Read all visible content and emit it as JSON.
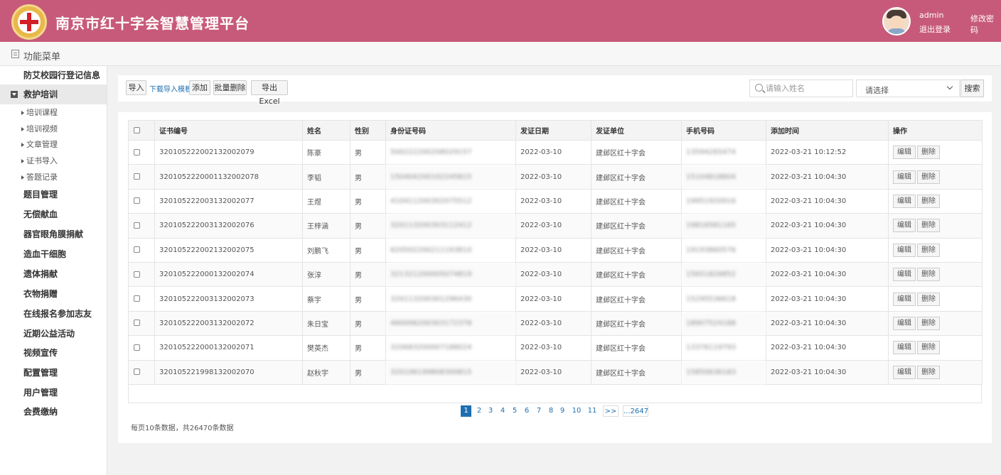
{
  "header": {
    "title": "南京市红十字会智慧管理平台",
    "user": "admin",
    "logout": "退出登录",
    "change_password": "修改密码"
  },
  "menubar": {
    "title": "功能菜单"
  },
  "sidebar": {
    "top_item": "防艾校园行登记信息",
    "active_group": "救护培训",
    "sub_items": [
      "培训课程",
      "培训视频",
      "文章管理",
      "证书导入",
      "答题记录"
    ],
    "items": [
      "题目管理",
      "无偿献血",
      "器官眼角膜捐献",
      "造血干细胞",
      "遗体捐献",
      "衣物捐赠",
      "在线报名参加志友",
      "近期公益活动",
      "视频宣传",
      "配置管理",
      "用户管理",
      "会费缴纳"
    ]
  },
  "toolbar": {
    "import": "导入",
    "download_template": "下载导入模板",
    "add": "添加",
    "batch_delete": "批量删除",
    "export": "导出Excel",
    "search_placeholder": "请输入姓名",
    "select_value": "请选择",
    "search_button": "搜索"
  },
  "table": {
    "headers": [
      "证书编号",
      "姓名",
      "性别",
      "身份证号码",
      "发证日期",
      "发证单位",
      "手机号码",
      "添加时间",
      "操作"
    ],
    "edit_label": "编辑",
    "delete_label": "删除",
    "rows": [
      {
        "cert": "3201052220021320020​79",
        "name": "陈豪",
        "gender": "男",
        "id": "500222200208029157",
        "date": "2022-03-10",
        "unit": "建邺区红十字会",
        "phone": "13594265474",
        "added": "2022-03-21 10:12:52"
      },
      {
        "cert": "320105222000113200207​8",
        "name": "李韬",
        "gender": "男",
        "id": "150404200102245815",
        "date": "2022-03-10",
        "unit": "建邺区红十字会",
        "phone": "15104818804",
        "added": "2022-03-21 10:04:30"
      },
      {
        "cert": "320105222003132002077",
        "name": "王煜",
        "gender": "男",
        "id": "410411200302075512",
        "date": "2022-03-10",
        "unit": "建邺区红十字会",
        "phone": "19951920916",
        "added": "2022-03-21 10:04:30"
      },
      {
        "cert": "320105222003132002076",
        "name": "王梓涵",
        "gender": "男",
        "id": "320113200303112412",
        "date": "2022-03-10",
        "unit": "建邺区红十字会",
        "phone": "19816581165",
        "added": "2022-03-21 10:04:30"
      },
      {
        "cert": "320105222002132002075",
        "name": "刘鹏飞",
        "gender": "男",
        "id": "620502200211193810",
        "date": "2022-03-10",
        "unit": "建邺区红十字会",
        "phone": "19193860576",
        "added": "2022-03-21 10:04:30"
      },
      {
        "cert": "320105222000132002074",
        "name": "张淳",
        "gender": "男",
        "id": "321321200005074819",
        "date": "2022-03-10",
        "unit": "建邺区红十字会",
        "phone": "15651826852",
        "added": "2022-03-21 10:04:30"
      },
      {
        "cert": "320105222003132002073",
        "name": "蔡宇",
        "gender": "男",
        "id": "320113200301296430",
        "date": "2022-03-10",
        "unit": "建邺区红十字会",
        "phone": "15295536618",
        "added": "2022-03-21 10:04:30"
      },
      {
        "cert": "320105222003132002072",
        "name": "朱日宝",
        "gender": "男",
        "id": "460006200303172378",
        "date": "2022-03-10",
        "unit": "建邺区红十字会",
        "phone": "18907524188",
        "added": "2022-03-21 10:04:30"
      },
      {
        "cert": "320105222000132002071",
        "name": "樊英杰",
        "gender": "男",
        "id": "320683200007188024",
        "date": "2022-03-10",
        "unit": "建邺区红十字会",
        "phone": "13376119793",
        "added": "2022-03-21 10:04:30"
      },
      {
        "cert": "320105221998132002070",
        "name": "赵秋宇",
        "gender": "男",
        "id": "320106199808300815",
        "date": "2022-03-10",
        "unit": "建邺区红十字会",
        "phone": "15850636183",
        "added": "2022-03-21 10:04:30"
      }
    ]
  },
  "pagination": {
    "pages": [
      "1",
      "2",
      "3",
      "4",
      "5",
      "6",
      "7",
      "8",
      "9",
      "10",
      "11"
    ],
    "next": ">>",
    "last": "...2647",
    "current": "1",
    "info": "每页10条数据，共26470条数据"
  },
  "colors": {
    "header_bg": "#c75a7a",
    "link": "#1e6fb0"
  }
}
